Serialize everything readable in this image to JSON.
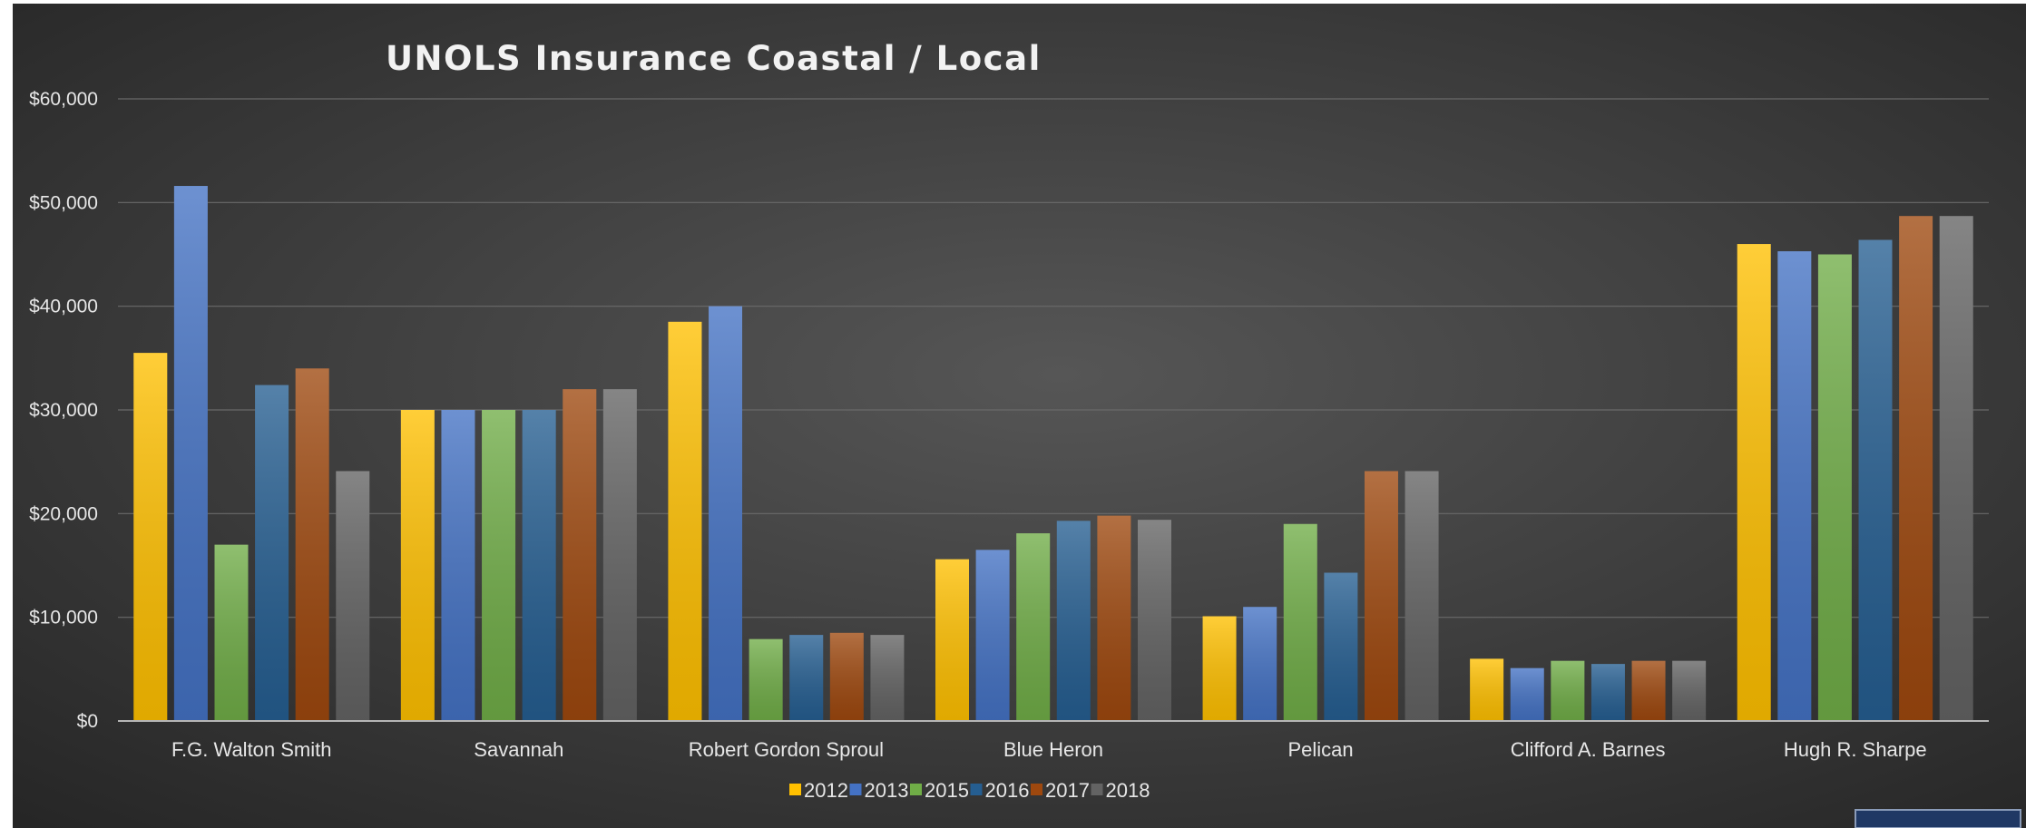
{
  "chart_data": {
    "type": "bar",
    "title": "UNOLS Insurance Coastal / Local",
    "xlabel": "",
    "ylabel": "",
    "categories": [
      "F.G. Walton Smith",
      "Savannah",
      "Robert Gordon Sproul",
      "Blue Heron",
      "Pelican",
      "Clifford A. Barnes",
      "Hugh R. Sharpe"
    ],
    "series": [
      {
        "name": "2012",
        "color": "#ffc000",
        "values": [
          35500,
          30000,
          38500,
          15600,
          10100,
          6000,
          46000
        ]
      },
      {
        "name": "2013",
        "color": "#4472c4",
        "values": [
          51600,
          30000,
          40000,
          16500,
          11000,
          5100,
          45300
        ]
      },
      {
        "name": "2015",
        "color": "#70ad47",
        "values": [
          17000,
          30000,
          7900,
          18100,
          19000,
          5800,
          45000
        ]
      },
      {
        "name": "2016",
        "color": "#255e91",
        "values": [
          32400,
          30000,
          8300,
          19300,
          14300,
          5500,
          46400
        ]
      },
      {
        "name": "2017",
        "color": "#9e480e",
        "values": [
          34000,
          32000,
          8500,
          19800,
          24100,
          5800,
          48700
        ]
      },
      {
        "name": "2018",
        "color": "#636363",
        "values": [
          24100,
          32000,
          8300,
          19400,
          24100,
          5800,
          48700
        ]
      }
    ],
    "ylim": [
      0,
      60000
    ],
    "yticks": [
      0,
      10000,
      20000,
      30000,
      40000,
      50000,
      60000
    ],
    "ytick_labels": [
      "$0",
      "$10,000",
      "$20,000",
      "$30,000",
      "$40,000",
      "$50,000",
      "$60,000"
    ],
    "grid": true,
    "legend_position": "bottom"
  }
}
